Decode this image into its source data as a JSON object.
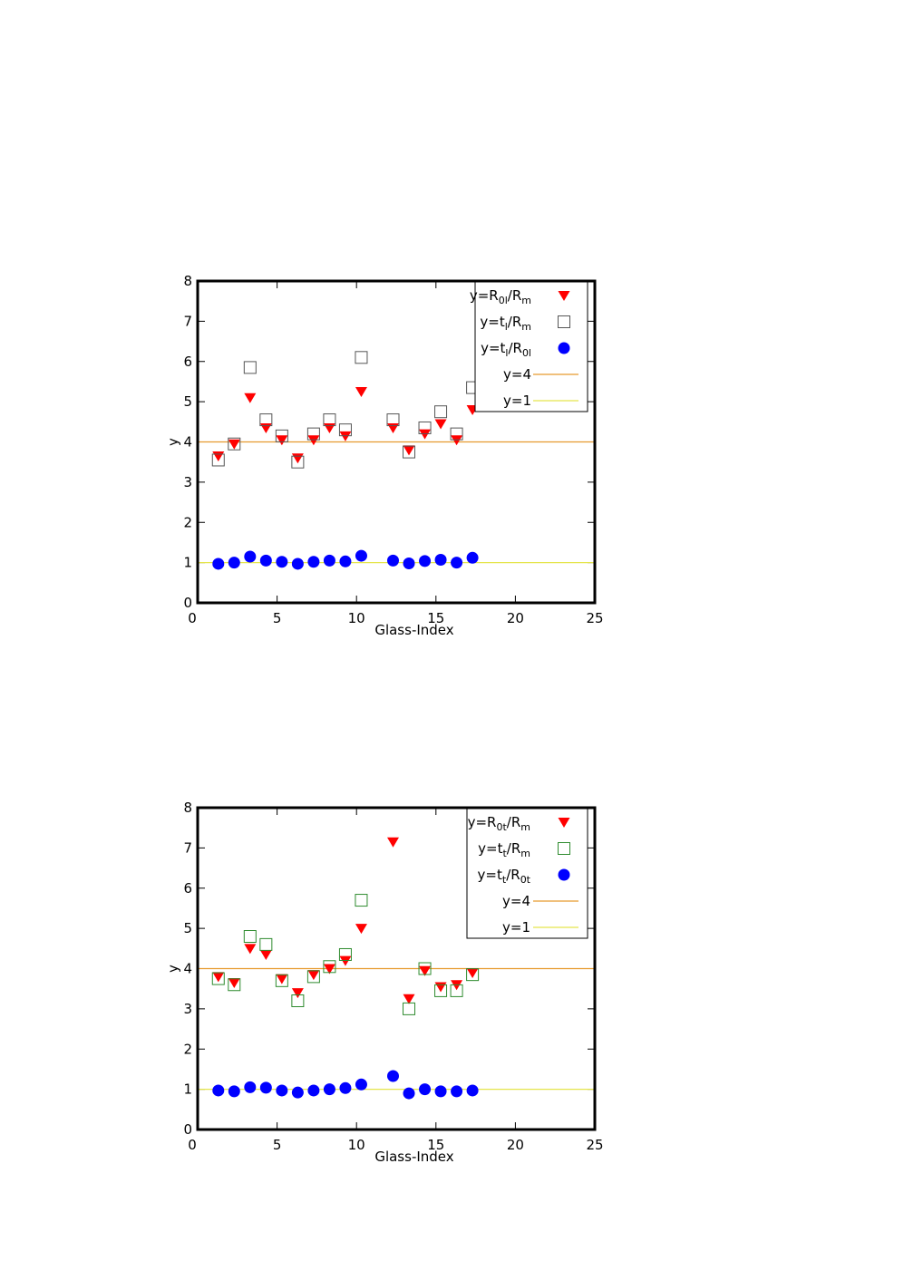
{
  "colors": {
    "ratio_marker": "#ff0000",
    "panel1_square": "#555555",
    "panel2_square": "#2e8b2e",
    "circle_marker": "#0000ff",
    "line_y4": "#e69a2e",
    "line_y1": "#e5e54c",
    "axis": "#000000"
  },
  "chart_data": [
    {
      "type": "scatter",
      "xlabel": "Glass-Index",
      "ylabel": "y",
      "xlim": [
        0,
        25
      ],
      "ylim": [
        0,
        8
      ],
      "xticks": [
        "0",
        "5",
        "10",
        "15",
        "20",
        "25"
      ],
      "yticks": [
        "0",
        "1",
        "2",
        "3",
        "4",
        "5",
        "6",
        "7",
        "8"
      ],
      "grid": false,
      "legend_position": "top-right",
      "series": [
        {
          "marker": "triangle-down",
          "color": "#ff0000",
          "label_parts": [
            "y=R",
            "0l",
            "/R",
            "m"
          ],
          "points": [
            [
              1.3,
              3.65
            ],
            [
              2.3,
              3.95
            ],
            [
              3.3,
              5.1
            ],
            [
              4.3,
              4.35
            ],
            [
              5.3,
              4.05
            ],
            [
              6.3,
              3.6
            ],
            [
              7.3,
              4.05
            ],
            [
              8.3,
              4.35
            ],
            [
              9.3,
              4.15
            ],
            [
              10.3,
              5.25
            ],
            [
              12.3,
              4.35
            ],
            [
              13.3,
              3.8
            ],
            [
              14.3,
              4.2
            ],
            [
              15.3,
              4.45
            ],
            [
              16.3,
              4.05
            ],
            [
              17.3,
              4.8
            ]
          ]
        },
        {
          "marker": "square-open",
          "color": "#555555",
          "label_parts": [
            "y=t",
            "l",
            "/R",
            "m"
          ],
          "points": [
            [
              1.3,
              3.55
            ],
            [
              2.3,
              3.95
            ],
            [
              3.3,
              5.85
            ],
            [
              4.3,
              4.55
            ],
            [
              5.3,
              4.15
            ],
            [
              6.3,
              3.5
            ],
            [
              7.3,
              4.2
            ],
            [
              8.3,
              4.55
            ],
            [
              9.3,
              4.3
            ],
            [
              10.3,
              6.1
            ],
            [
              12.3,
              4.55
            ],
            [
              13.3,
              3.75
            ],
            [
              14.3,
              4.35
            ],
            [
              15.3,
              4.75
            ],
            [
              16.3,
              4.2
            ],
            [
              17.3,
              5.35
            ]
          ]
        },
        {
          "marker": "circle",
          "color": "#0000ff",
          "label_parts": [
            "y=t",
            "l",
            "/R",
            "0l"
          ],
          "points": [
            [
              1.3,
              0.97
            ],
            [
              2.3,
              1.0
            ],
            [
              3.3,
              1.15
            ],
            [
              4.3,
              1.05
            ],
            [
              5.3,
              1.02
            ],
            [
              6.3,
              0.97
            ],
            [
              7.3,
              1.02
            ],
            [
              8.3,
              1.05
            ],
            [
              9.3,
              1.03
            ],
            [
              10.3,
              1.17
            ],
            [
              12.3,
              1.05
            ],
            [
              13.3,
              0.98
            ],
            [
              14.3,
              1.04
            ],
            [
              15.3,
              1.07
            ],
            [
              16.3,
              1.0
            ],
            [
              17.3,
              1.12
            ]
          ]
        },
        {
          "marker": "hline",
          "color": "#e69a2e",
          "label": "y=4",
          "y": 4
        },
        {
          "marker": "hline",
          "color": "#e5e54c",
          "label": "y=1",
          "y": 1
        }
      ]
    },
    {
      "type": "scatter",
      "xlabel": "Glass-Index",
      "ylabel": "y",
      "xlim": [
        0,
        25
      ],
      "ylim": [
        0,
        8
      ],
      "xticks": [
        "0",
        "5",
        "10",
        "15",
        "20",
        "25"
      ],
      "yticks": [
        "0",
        "1",
        "2",
        "3",
        "4",
        "5",
        "6",
        "7",
        "8"
      ],
      "grid": false,
      "legend_position": "top-right",
      "series": [
        {
          "marker": "triangle-down",
          "color": "#ff0000",
          "label_parts": [
            "y=R",
            "0t",
            "/R",
            "m"
          ],
          "points": [
            [
              1.3,
              3.8
            ],
            [
              2.3,
              3.65
            ],
            [
              3.3,
              4.5
            ],
            [
              4.3,
              4.35
            ],
            [
              5.3,
              3.75
            ],
            [
              6.3,
              3.4
            ],
            [
              7.3,
              3.85
            ],
            [
              8.3,
              4.0
            ],
            [
              9.3,
              4.2
            ],
            [
              10.3,
              5.0
            ],
            [
              12.3,
              7.15
            ],
            [
              13.3,
              3.25
            ],
            [
              14.3,
              3.95
            ],
            [
              15.3,
              3.55
            ],
            [
              16.3,
              3.6
            ],
            [
              17.3,
              3.9
            ]
          ]
        },
        {
          "marker": "square-open",
          "color": "#2e8b2e",
          "label_parts": [
            "y=t",
            "t",
            "/R",
            "m"
          ],
          "points": [
            [
              1.3,
              3.75
            ],
            [
              2.3,
              3.6
            ],
            [
              3.3,
              4.8
            ],
            [
              4.3,
              4.6
            ],
            [
              5.3,
              3.7
            ],
            [
              6.3,
              3.2
            ],
            [
              7.3,
              3.8
            ],
            [
              8.3,
              4.05
            ],
            [
              9.3,
              4.35
            ],
            [
              10.3,
              5.7
            ],
            [
              13.3,
              3.0
            ],
            [
              14.3,
              4.0
            ],
            [
              15.3,
              3.45
            ],
            [
              16.3,
              3.45
            ],
            [
              17.3,
              3.85
            ]
          ]
        },
        {
          "marker": "circle",
          "color": "#0000ff",
          "label_parts": [
            "y=t",
            "t",
            "/R",
            "0t"
          ],
          "points": [
            [
              1.3,
              0.97
            ],
            [
              2.3,
              0.95
            ],
            [
              3.3,
              1.05
            ],
            [
              4.3,
              1.04
            ],
            [
              5.3,
              0.97
            ],
            [
              6.3,
              0.92
            ],
            [
              7.3,
              0.97
            ],
            [
              8.3,
              1.0
            ],
            [
              9.3,
              1.03
            ],
            [
              10.3,
              1.12
            ],
            [
              12.3,
              1.33
            ],
            [
              13.3,
              0.9
            ],
            [
              14.3,
              1.0
            ],
            [
              15.3,
              0.95
            ],
            [
              16.3,
              0.95
            ],
            [
              17.3,
              0.97
            ]
          ]
        },
        {
          "marker": "hline",
          "color": "#e69a2e",
          "label": "y=4",
          "y": 4
        },
        {
          "marker": "hline",
          "color": "#e5e54c",
          "label": "y=1",
          "y": 1
        }
      ]
    }
  ]
}
